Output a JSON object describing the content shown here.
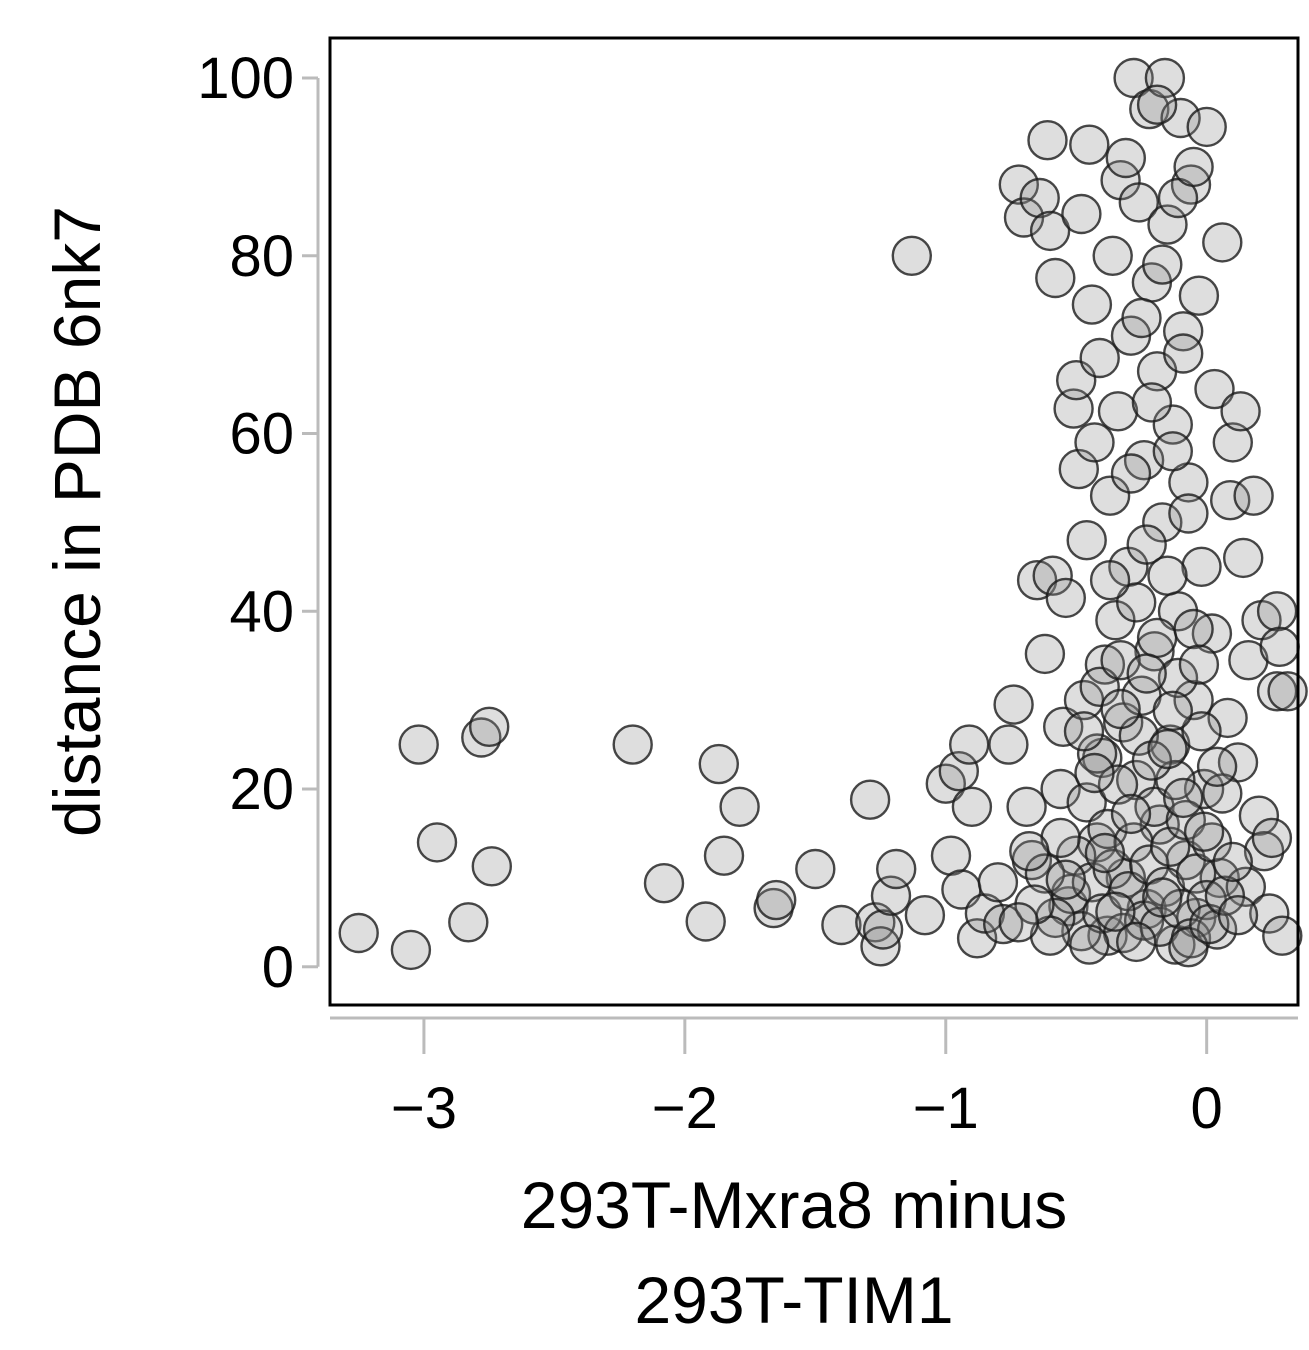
{
  "chart_data": {
    "type": "scatter",
    "xlabel": [
      "293T-Mxra8 minus",
      "293T-TIM1"
    ],
    "ylabel": "distance in PDB 6nk7",
    "xlim": [
      -3.36,
      0.35
    ],
    "ylim": [
      -4.3,
      104.5
    ],
    "xticks": [
      -3,
      -2,
      -1,
      0
    ],
    "xtick_labels": [
      "−3",
      "−2",
      "−1",
      "0"
    ],
    "yticks": [
      0,
      20,
      40,
      60,
      80,
      100
    ],
    "ytick_labels": [
      "0",
      "20",
      "40",
      "60",
      "80",
      "100"
    ],
    "grid": false,
    "legend": "none",
    "colors": {
      "marker_fill": "#8a8a8a",
      "marker_stroke": "#1a1a1a",
      "frame": "#000000",
      "axis_line": "#bbbbbb"
    },
    "points": [
      [
        -3.25,
        3.8
      ],
      [
        -3.05,
        1.9
      ],
      [
        -3.02,
        25.0
      ],
      [
        -2.95,
        14.0
      ],
      [
        -2.83,
        5.0
      ],
      [
        -2.78,
        25.8
      ],
      [
        -2.75,
        27.0
      ],
      [
        -2.74,
        11.3
      ],
      [
        -2.2,
        25.0
      ],
      [
        -2.08,
        9.4
      ],
      [
        -1.92,
        5.1
      ],
      [
        -1.87,
        22.8
      ],
      [
        -1.85,
        12.5
      ],
      [
        -1.79,
        18.0
      ],
      [
        -1.66,
        6.6
      ],
      [
        -1.65,
        7.5
      ],
      [
        -1.5,
        11.0
      ],
      [
        -1.4,
        4.7
      ],
      [
        -1.29,
        18.8
      ],
      [
        -1.27,
        5.0
      ],
      [
        -1.25,
        2.3
      ],
      [
        -1.24,
        4.2
      ],
      [
        -1.21,
        8.0
      ],
      [
        -1.19,
        11.0
      ],
      [
        -1.13,
        80.0
      ],
      [
        -1.08,
        5.8
      ],
      [
        -1.0,
        20.6
      ],
      [
        -0.98,
        12.5
      ],
      [
        -0.95,
        22.0
      ],
      [
        -0.94,
        8.7
      ],
      [
        -0.91,
        25.0
      ],
      [
        -0.9,
        18.0
      ],
      [
        -0.88,
        3.2
      ],
      [
        -0.85,
        6.0
      ],
      [
        -0.8,
        9.5
      ],
      [
        -0.78,
        4.8
      ],
      [
        -0.76,
        25.0
      ],
      [
        -0.74,
        29.5
      ],
      [
        -0.72,
        88.0
      ],
      [
        -0.7,
        84.3
      ],
      [
        -0.69,
        18.0
      ],
      [
        -0.67,
        12.0
      ],
      [
        -0.65,
        43.5
      ],
      [
        -0.64,
        86.5
      ],
      [
        -0.62,
        35.2
      ],
      [
        -0.61,
        93.0
      ],
      [
        -0.6,
        82.8
      ],
      [
        -0.59,
        44.0
      ],
      [
        -0.58,
        77.5
      ],
      [
        -0.56,
        20.0
      ],
      [
        -0.55,
        27.0
      ],
      [
        -0.54,
        41.5
      ],
      [
        -0.53,
        6.8
      ],
      [
        -0.51,
        62.8
      ],
      [
        -0.5,
        66.0
      ],
      [
        -0.49,
        56.0
      ],
      [
        -0.48,
        84.7
      ],
      [
        -0.47,
        30.0
      ],
      [
        -0.46,
        48.0
      ],
      [
        -0.45,
        92.5
      ],
      [
        -0.44,
        74.5
      ],
      [
        -0.43,
        59.0
      ],
      [
        -0.42,
        14.0
      ],
      [
        -0.41,
        68.5
      ],
      [
        -0.4,
        23.5
      ],
      [
        -0.39,
        34.0
      ],
      [
        -0.38,
        3.5
      ],
      [
        -0.37,
        53.0
      ],
      [
        -0.36,
        80.0
      ],
      [
        -0.35,
        39.0
      ],
      [
        -0.34,
        62.5
      ],
      [
        -0.33,
        88.5
      ],
      [
        -0.32,
        27.5
      ],
      [
        -0.31,
        10.0
      ],
      [
        -0.3,
        45.0
      ],
      [
        -0.29,
        71.0
      ],
      [
        -0.28,
        100.0
      ],
      [
        -0.27,
        21.0
      ],
      [
        -0.26,
        86.0
      ],
      [
        -0.25,
        30.5
      ],
      [
        -0.24,
        57.0
      ],
      [
        -0.23,
        6.5
      ],
      [
        -0.22,
        96.5
      ],
      [
        -0.21,
        77.0
      ],
      [
        -0.2,
        35.5
      ],
      [
        -0.19,
        67.0
      ],
      [
        -0.18,
        16.0
      ],
      [
        -0.17,
        50.0
      ],
      [
        -0.16,
        100.0
      ],
      [
        -0.15,
        83.5
      ],
      [
        -0.14,
        25.0
      ],
      [
        -0.13,
        61.0
      ],
      [
        -0.12,
        2.5
      ],
      [
        -0.11,
        40.0
      ],
      [
        -0.1,
        95.5
      ],
      [
        -0.09,
        71.5
      ],
      [
        -0.08,
        12.0
      ],
      [
        -0.07,
        54.5
      ],
      [
        -0.06,
        88.0
      ],
      [
        -0.05,
        30.0
      ],
      [
        -0.04,
        5.5
      ],
      [
        -0.03,
        75.5
      ],
      [
        -0.02,
        45.0
      ],
      [
        -0.01,
        20.0
      ],
      [
        0.0,
        94.5
      ],
      [
        0.02,
        37.5
      ],
      [
        0.03,
        65.0
      ],
      [
        0.05,
        10.0
      ],
      [
        0.06,
        81.5
      ],
      [
        0.08,
        28.0
      ],
      [
        0.09,
        52.5
      ],
      [
        0.1,
        59.0
      ],
      [
        0.12,
        23.0
      ],
      [
        0.13,
        62.5
      ],
      [
        0.14,
        46.0
      ],
      [
        0.15,
        9.0
      ],
      [
        0.16,
        34.5
      ],
      [
        0.18,
        53.0
      ],
      [
        0.2,
        17.0
      ],
      [
        0.21,
        39.0
      ],
      [
        0.22,
        13.0
      ],
      [
        0.24,
        6.0
      ],
      [
        0.25,
        14.5
      ],
      [
        0.27,
        31.0
      ],
      [
        0.27,
        40.0
      ],
      [
        0.28,
        36.0
      ],
      [
        0.29,
        3.5
      ],
      [
        0.31,
        31.0
      ],
      [
        -0.52,
        8.2
      ],
      [
        -0.5,
        12.5
      ],
      [
        -0.48,
        4.0
      ],
      [
        -0.46,
        18.5
      ],
      [
        -0.44,
        9.5
      ],
      [
        -0.42,
        24.0
      ],
      [
        -0.4,
        6.0
      ],
      [
        -0.38,
        15.5
      ],
      [
        -0.36,
        11.0
      ],
      [
        -0.34,
        20.5
      ],
      [
        -0.32,
        3.8
      ],
      [
        -0.3,
        8.5
      ],
      [
        -0.28,
        14.0
      ],
      [
        -0.26,
        26.0
      ],
      [
        -0.24,
        5.2
      ],
      [
        -0.22,
        11.5
      ],
      [
        -0.2,
        18.0
      ],
      [
        -0.18,
        4.5
      ],
      [
        -0.16,
        9.0
      ],
      [
        -0.14,
        13.5
      ],
      [
        -0.12,
        21.0
      ],
      [
        -0.1,
        6.5
      ],
      [
        -0.08,
        16.5
      ],
      [
        -0.06,
        3.2
      ],
      [
        -0.04,
        10.5
      ],
      [
        -0.02,
        26.5
      ],
      [
        0.0,
        7.5
      ],
      [
        0.02,
        14.0
      ],
      [
        0.04,
        4.2
      ],
      [
        0.06,
        19.5
      ],
      [
        -0.41,
        31.5
      ],
      [
        -0.33,
        34.5
      ],
      [
        -0.27,
        41.0
      ],
      [
        -0.19,
        37.0
      ],
      [
        -0.11,
        32.5
      ],
      [
        -0.05,
        38.0
      ],
      [
        -0.37,
        43.5
      ],
      [
        -0.23,
        47.5
      ],
      [
        -0.15,
        44.0
      ],
      [
        -0.07,
        51.0
      ],
      [
        -0.29,
        55.5
      ],
      [
        -0.21,
        63.5
      ],
      [
        -0.13,
        58.0
      ],
      [
        -0.09,
        69.0
      ],
      [
        -0.25,
        73.0
      ],
      [
        -0.17,
        79.0
      ],
      [
        -0.31,
        91.0
      ],
      [
        -0.11,
        86.5
      ],
      [
        -0.19,
        97.0
      ],
      [
        -0.05,
        90.0
      ],
      [
        -0.62,
        10.5
      ],
      [
        -0.58,
        5.5
      ],
      [
        -0.56,
        14.5
      ],
      [
        -0.6,
        3.5
      ],
      [
        -0.54,
        9.8
      ],
      [
        -0.66,
        7.0
      ],
      [
        -0.68,
        13.0
      ],
      [
        -0.72,
        5.0
      ],
      [
        -0.45,
        2.5
      ],
      [
        -0.35,
        6.2
      ],
      [
        -0.27,
        2.8
      ],
      [
        -0.17,
        7.8
      ],
      [
        -0.07,
        2.2
      ],
      [
        0.01,
        4.8
      ],
      [
        0.07,
        8.0
      ],
      [
        -0.39,
        12.8
      ],
      [
        -0.29,
        17.2
      ],
      [
        -0.21,
        23.2
      ],
      [
        -0.13,
        28.8
      ],
      [
        -0.03,
        34.0
      ],
      [
        -0.47,
        26.5
      ],
      [
        -0.43,
        21.8
      ],
      [
        -0.33,
        29.0
      ],
      [
        -0.23,
        33.0
      ],
      [
        -0.15,
        24.5
      ],
      [
        -0.09,
        19.0
      ],
      [
        -0.01,
        15.2
      ],
      [
        0.04,
        22.5
      ],
      [
        0.1,
        11.8
      ],
      [
        0.12,
        5.8
      ]
    ]
  }
}
